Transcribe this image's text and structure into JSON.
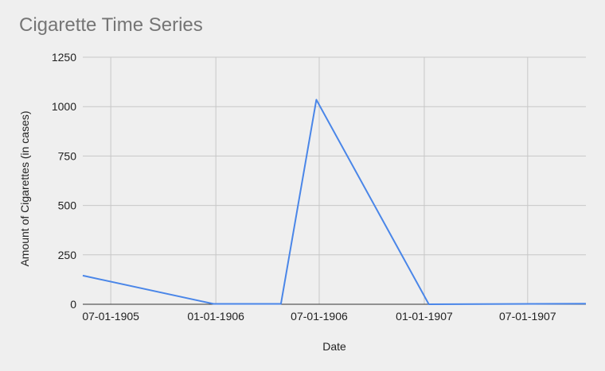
{
  "chart_data": {
    "type": "line",
    "title": "Cigarette Time Series",
    "xlabel": "Date",
    "ylabel": "Amount of Cigarettes (in cases)",
    "ylim": [
      0,
      1250
    ],
    "xlim": [
      "1905-05-13",
      "1907-10-11"
    ],
    "y_ticks": [
      0,
      250,
      500,
      750,
      1000,
      1250
    ],
    "x_ticks": [
      {
        "date": "1905-07-01",
        "label": "07-01-1905"
      },
      {
        "date": "1906-01-01",
        "label": "01-01-1906"
      },
      {
        "date": "1906-07-01",
        "label": "07-01-1906"
      },
      {
        "date": "1907-01-01",
        "label": "01-01-1907"
      },
      {
        "date": "1907-07-01",
        "label": "07-01-1907"
      }
    ],
    "grid": true,
    "line_color": "#4a86e8",
    "series": [
      {
        "x": [
          "1905-05-13",
          "1905-12-28",
          "1906-04-25",
          "1906-06-26",
          "1907-01-09",
          "1907-10-11"
        ],
        "y": [
          145,
          2,
          2,
          1035,
          0,
          3
        ]
      }
    ]
  }
}
